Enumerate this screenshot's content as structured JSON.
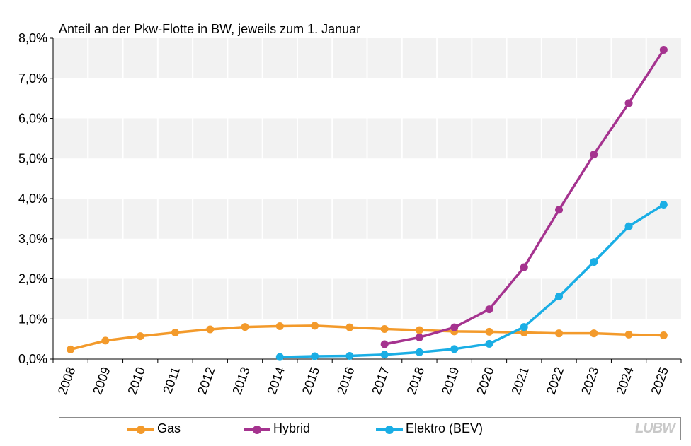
{
  "chart_data": {
    "type": "line",
    "title": "Anteil an der Pkw-Flotte in BW, jeweils zum 1. Januar",
    "xlabel": "",
    "ylabel": "",
    "ylim": [
      0,
      8
    ],
    "y_ticks": [
      "0,0%",
      "1,0%",
      "2,0%",
      "3,0%",
      "4,0%",
      "5,0%",
      "6,0%",
      "7,0%",
      "8,0%"
    ],
    "categories": [
      "2008",
      "2009",
      "2010",
      "2011",
      "2012",
      "2013",
      "2014",
      "2015",
      "2016",
      "2017",
      "2018",
      "2019",
      "2020",
      "2021",
      "2022",
      "2023",
      "2024",
      "2025"
    ],
    "grid": "alternating horizontal bands",
    "legend_placement": "bottom",
    "series": [
      {
        "name": "Gas",
        "color": "#f39a2b",
        "values": [
          0.24,
          0.46,
          0.57,
          0.66,
          0.74,
          0.8,
          0.82,
          0.83,
          0.79,
          0.75,
          0.72,
          0.69,
          0.68,
          0.66,
          0.64,
          0.64,
          0.61,
          0.59
        ]
      },
      {
        "name": "Hybrid",
        "color": "#a5338f",
        "values": [
          null,
          null,
          null,
          null,
          null,
          null,
          null,
          null,
          null,
          0.37,
          0.54,
          0.79,
          1.24,
          2.29,
          3.72,
          5.1,
          6.38,
          7.71
        ]
      },
      {
        "name": "Elektro (BEV)",
        "color": "#1aaee5",
        "values": [
          null,
          null,
          null,
          null,
          null,
          null,
          0.05,
          0.07,
          0.08,
          0.11,
          0.17,
          0.25,
          0.38,
          0.8,
          1.56,
          2.42,
          3.31,
          3.85
        ]
      }
    ]
  },
  "logo": "LUBW"
}
